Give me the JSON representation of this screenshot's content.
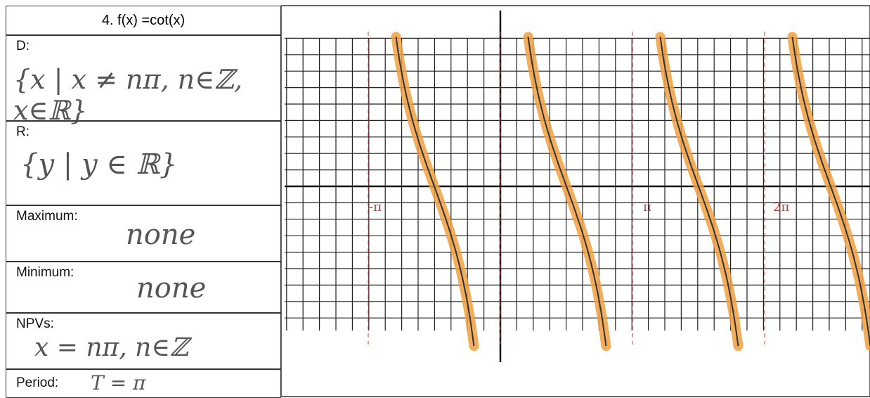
{
  "header": {
    "title": "4.   f(x) =cot(x)"
  },
  "table": {
    "rows": [
      {
        "label": "D:",
        "answer": "{x | x ≠ nπ, n∈ℤ, x∈ℝ}"
      },
      {
        "label": "R:",
        "answer": "{y | y ∈ ℝ}"
      },
      {
        "label": "Maximum:",
        "answer": "none"
      },
      {
        "label": "Minimum:",
        "answer": "none"
      },
      {
        "label": "NPVs:",
        "answer": "x = nπ,  n∈ℤ"
      },
      {
        "label": "Period:",
        "answer": "T = π"
      }
    ]
  },
  "graph": {
    "x_labels": [
      "-π",
      "π",
      "2π"
    ]
  }
}
